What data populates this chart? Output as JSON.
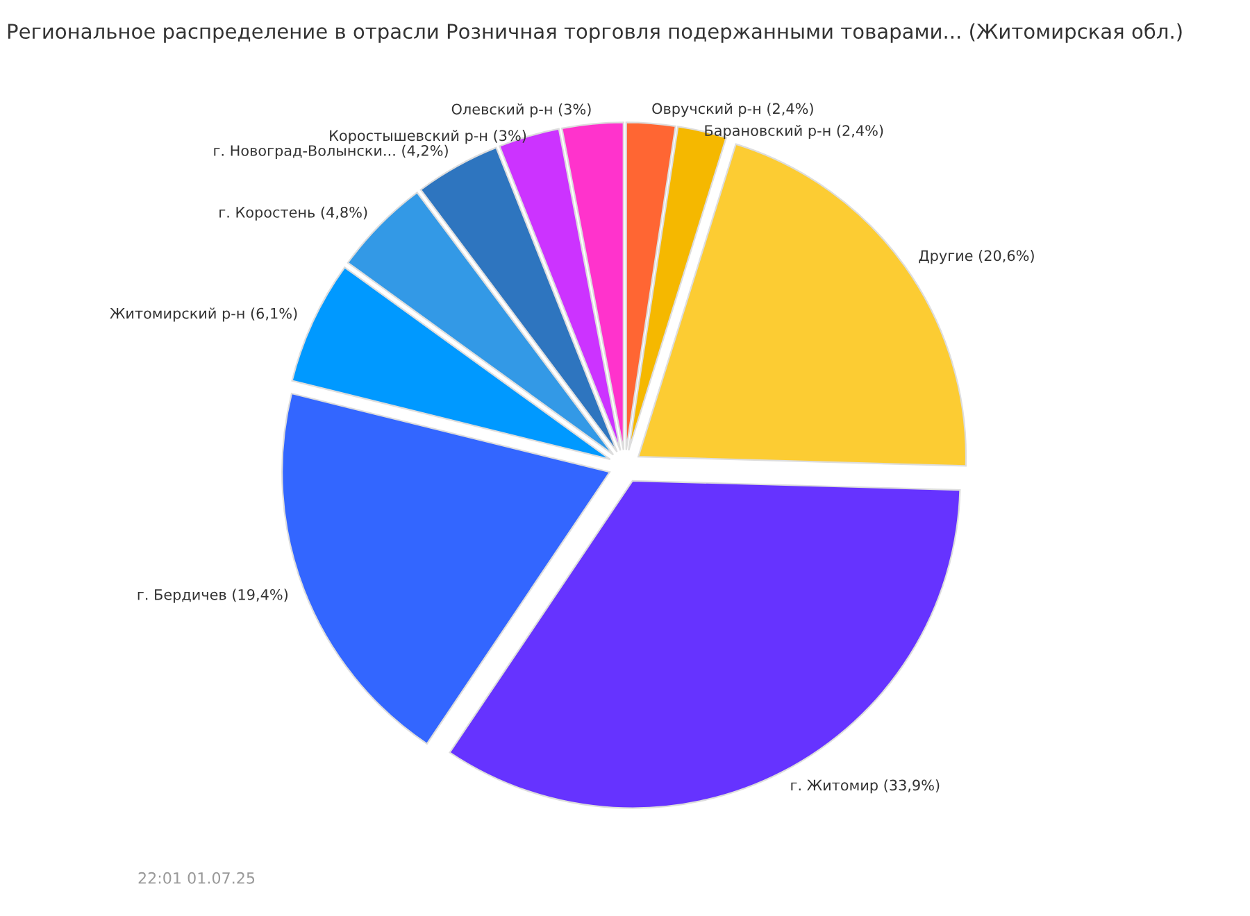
{
  "chart_data": {
    "type": "pie",
    "title": "Региональное распределение в отрасли Розничная торговля подержанными товарами... (Житомирская обл.)",
    "categories": [
      "Овручский р-н",
      "Барановский р-н",
      "Другие",
      "г. Житомир",
      "г. Бердичев",
      "Житомирский р-н",
      "г. Коростень",
      "г. Новоград-Волынски...",
      "Коростышевский р-н",
      "Олевский р-н"
    ],
    "values": [
      2.4,
      2.4,
      20.6,
      33.9,
      19.4,
      6.1,
      4.8,
      4.2,
      3,
      3
    ],
    "value_labels": [
      "(2,4%)",
      "(2,4%)",
      "(20,6%)",
      "(33,9%)",
      "(19,4%)",
      "(6,1%)",
      "(4,8%)",
      "(4,2%)",
      "(3%)",
      "(3%)"
    ],
    "colors": [
      "#ff6633",
      "#f5b800",
      "#fccc33",
      "#6633ff",
      "#3366ff",
      "#0099ff",
      "#3399e6",
      "#2e75bf",
      "#cc33ff",
      "#ff33cc"
    ],
    "annotations": [
      "22:01 01.07.25"
    ],
    "legend": false
  }
}
